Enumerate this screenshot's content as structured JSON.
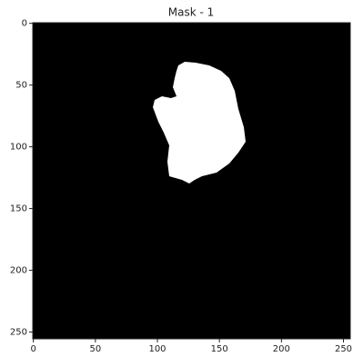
{
  "chart_data": {
    "type": "image",
    "title": "Mask - 1",
    "xlim": [
      -0.5,
      255.5
    ],
    "ylim": [
      255.5,
      -0.5
    ],
    "xticks": [
      0,
      50,
      100,
      150,
      200,
      250
    ],
    "yticks": [
      0,
      50,
      100,
      150,
      200,
      250
    ],
    "background": "#000000",
    "mask_color": "#ffffff"
  }
}
